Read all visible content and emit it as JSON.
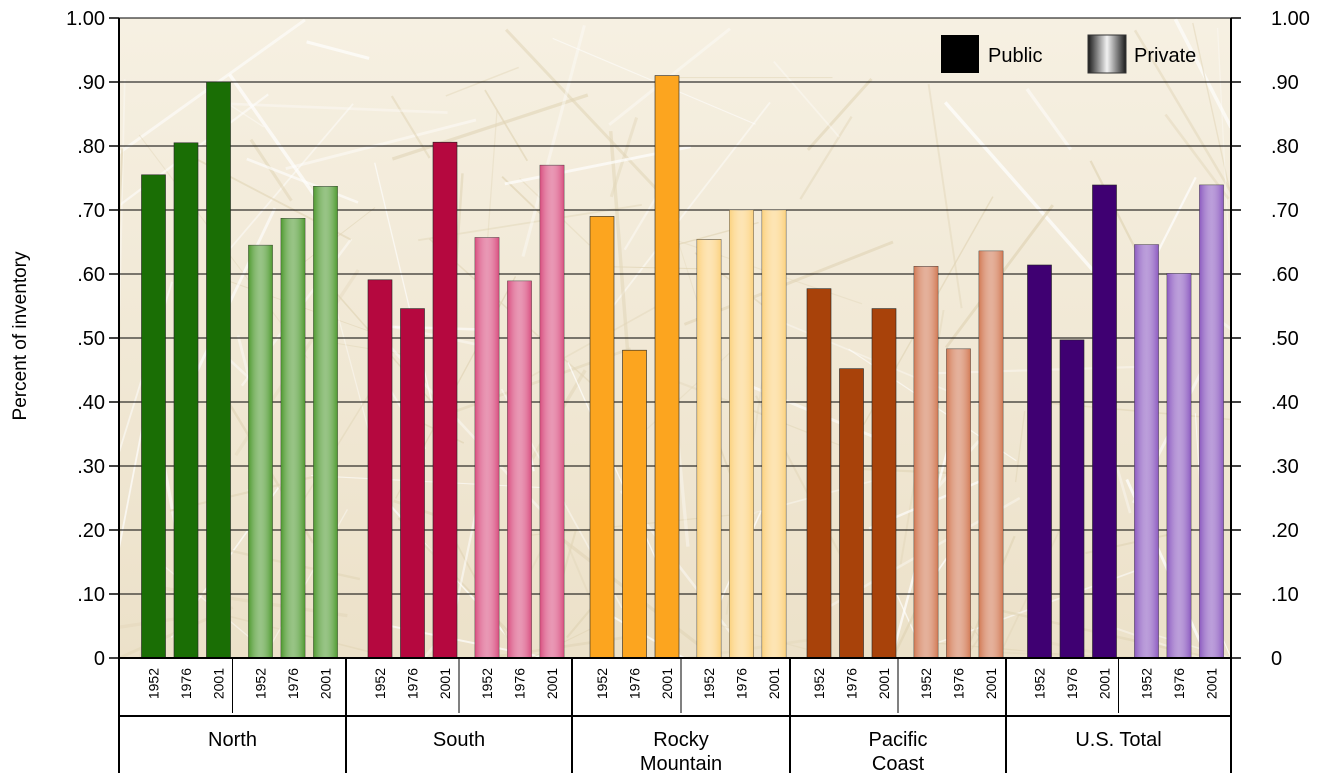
{
  "chart_data": {
    "type": "bar",
    "title": "",
    "ylabel": "Percent of inventory",
    "xlabel": "",
    "ylim": [
      0,
      1.0
    ],
    "yticks": [
      "0",
      ".10",
      ".20",
      ".30",
      ".40",
      ".50",
      ".60",
      ".70",
      ".80",
      ".90",
      "1.00"
    ],
    "grid": true,
    "legend_position": "top-right",
    "legend": [
      {
        "name": "Public",
        "style": "solid"
      },
      {
        "name": "Private",
        "style": "gradient"
      }
    ],
    "years": [
      "1952",
      "1976",
      "2001"
    ],
    "regions": [
      {
        "name": "North",
        "label_lines": [
          "North"
        ],
        "public_color": "#1a6e05",
        "private_color": "#4f9a30",
        "public": [
          0.755,
          0.805,
          0.9
        ],
        "private": [
          0.645,
          0.687,
          0.737
        ]
      },
      {
        "name": "South",
        "label_lines": [
          "South"
        ],
        "public_color": "#b5083f",
        "private_color": "#d94f80",
        "public": [
          0.591,
          0.546,
          0.806
        ],
        "private": [
          0.657,
          0.589,
          0.77
        ]
      },
      {
        "name": "Rocky Mountain",
        "label_lines": [
          "Rocky",
          "Mountain"
        ],
        "public_color": "#fca51f",
        "private_color": "#fcd27f",
        "public": [
          0.69,
          0.481,
          0.91
        ],
        "private": [
          0.654,
          0.7,
          0.7
        ]
      },
      {
        "name": "Pacific Coast",
        "label_lines": [
          "Pacific",
          "Coast"
        ],
        "public_color": "#a8420a",
        "private_color": "#d27a55",
        "public": [
          0.577,
          0.452,
          0.546
        ],
        "private": [
          0.612,
          0.483,
          0.636
        ]
      },
      {
        "name": "U.S. Total",
        "label_lines": [
          "U.S. Total"
        ],
        "public_color": "#3f0072",
        "private_color": "#8c5ac0",
        "public": [
          0.614,
          0.497,
          0.739
        ],
        "private": [
          0.646,
          0.601,
          0.739
        ]
      }
    ]
  }
}
